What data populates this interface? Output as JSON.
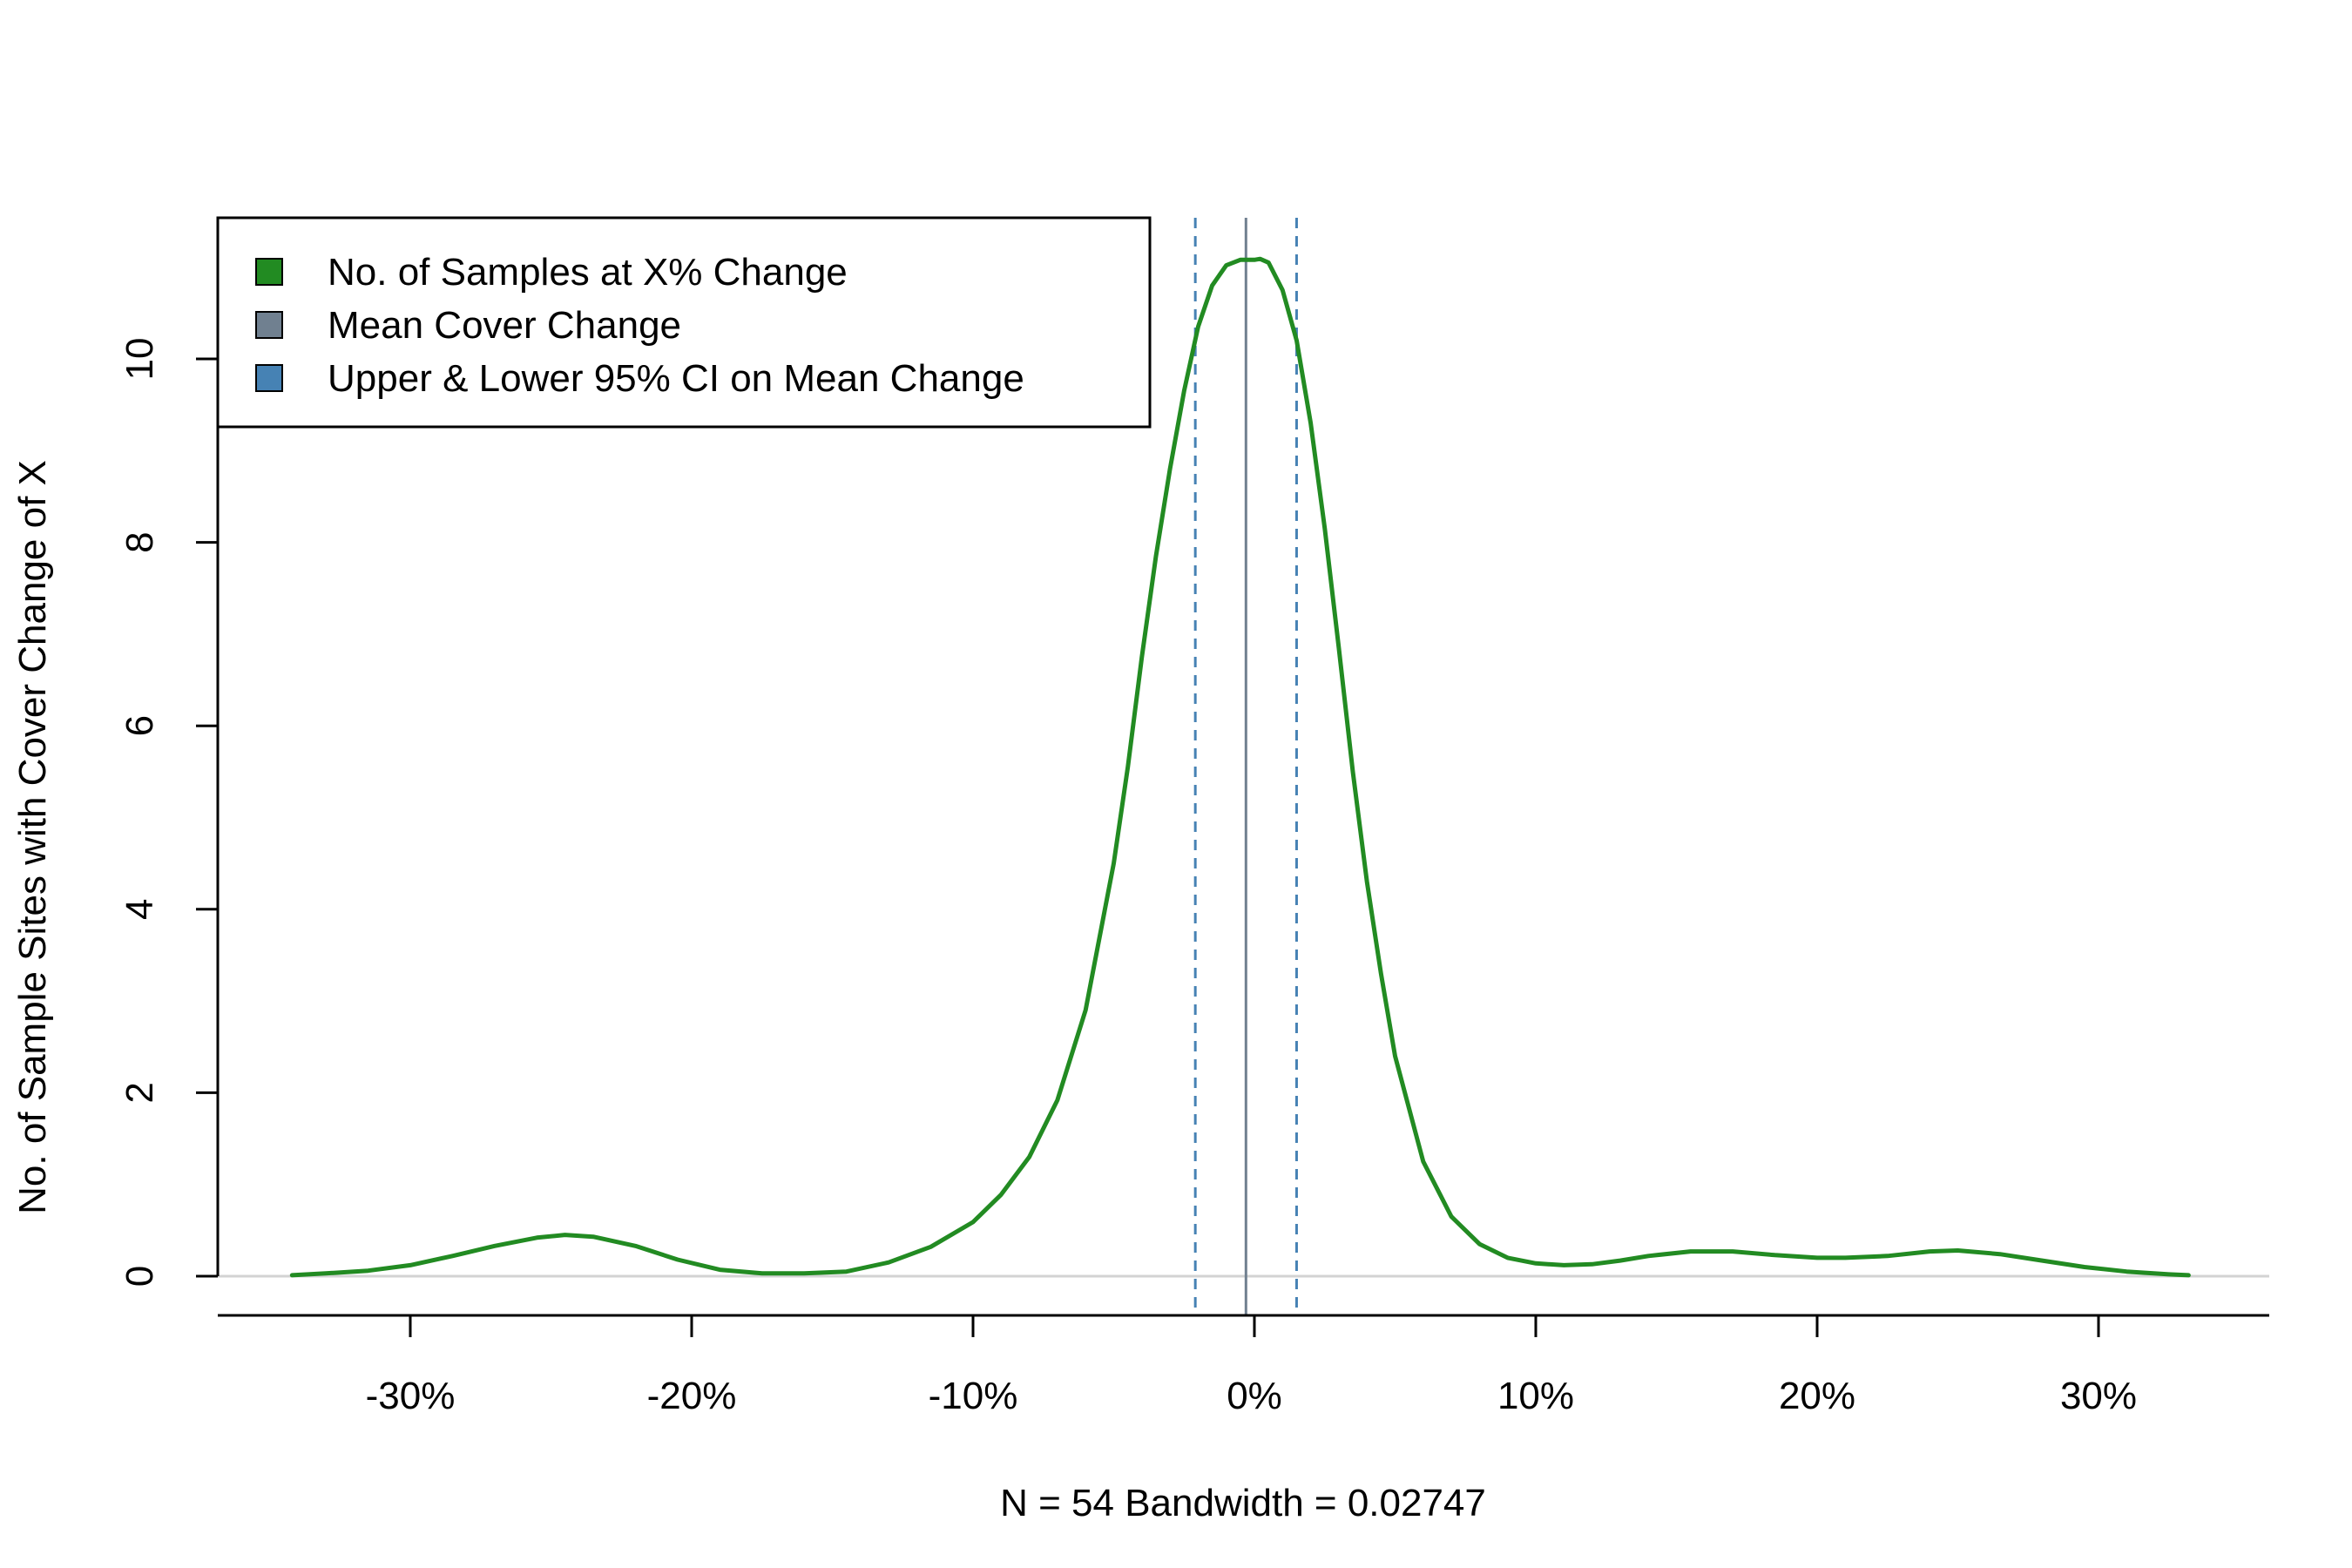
{
  "chart_data": {
    "type": "line",
    "title": "",
    "xlabel": "N = 54   Bandwidth = 0.02747",
    "ylabel": "No. of Sample Sites with Cover Change of X",
    "xlim": [
      -0.37,
      0.36
    ],
    "ylim": [
      0,
      11.5
    ],
    "x_ticks": [
      {
        "value": -0.3,
        "label": "-30%"
      },
      {
        "value": -0.2,
        "label": "-20%"
      },
      {
        "value": -0.1,
        "label": "-10%"
      },
      {
        "value": 0.0,
        "label": "0%"
      },
      {
        "value": 0.1,
        "label": "10%"
      },
      {
        "value": 0.2,
        "label": "20%"
      },
      {
        "value": 0.3,
        "label": "30%"
      }
    ],
    "y_ticks": [
      {
        "value": 0,
        "label": "0"
      },
      {
        "value": 2,
        "label": "2"
      },
      {
        "value": 4,
        "label": "4"
      },
      {
        "value": 6,
        "label": "6"
      },
      {
        "value": 8,
        "label": "8"
      },
      {
        "value": 10,
        "label": "10"
      }
    ],
    "series": [
      {
        "name": "No. of Samples at X% Change",
        "color": "#228B22",
        "x": [
          -0.342,
          -0.33,
          -0.315,
          -0.3,
          -0.285,
          -0.27,
          -0.255,
          -0.245,
          -0.235,
          -0.22,
          -0.205,
          -0.19,
          -0.175,
          -0.16,
          -0.145,
          -0.13,
          -0.115,
          -0.1,
          -0.09,
          -0.08,
          -0.07,
          -0.06,
          -0.05,
          -0.045,
          -0.04,
          -0.035,
          -0.03,
          -0.025,
          -0.02,
          -0.015,
          -0.01,
          -0.005,
          0.0,
          0.002,
          0.005,
          0.01,
          0.015,
          0.02,
          0.025,
          0.03,
          0.035,
          0.04,
          0.045,
          0.05,
          0.06,
          0.07,
          0.08,
          0.09,
          0.1,
          0.11,
          0.12,
          0.13,
          0.14,
          0.155,
          0.17,
          0.185,
          0.2,
          0.21,
          0.225,
          0.24,
          0.25,
          0.265,
          0.28,
          0.295,
          0.31,
          0.325,
          0.332
        ],
        "values": [
          0.01,
          0.03,
          0.06,
          0.12,
          0.22,
          0.33,
          0.42,
          0.45,
          0.43,
          0.33,
          0.18,
          0.07,
          0.03,
          0.03,
          0.05,
          0.15,
          0.32,
          0.59,
          0.89,
          1.3,
          1.92,
          2.9,
          4.5,
          5.55,
          6.75,
          7.85,
          8.8,
          9.65,
          10.35,
          10.8,
          11.02,
          11.08,
          11.08,
          11.09,
          11.05,
          10.75,
          10.2,
          9.3,
          8.15,
          6.85,
          5.5,
          4.3,
          3.3,
          2.4,
          1.25,
          0.65,
          0.35,
          0.2,
          0.14,
          0.12,
          0.13,
          0.17,
          0.22,
          0.27,
          0.27,
          0.23,
          0.2,
          0.2,
          0.22,
          0.27,
          0.28,
          0.24,
          0.17,
          0.1,
          0.05,
          0.02,
          0.01
        ]
      }
    ],
    "vlines": [
      {
        "name": "Mean Cover Change",
        "x": -0.003,
        "color": "#708090",
        "style": "solid"
      },
      {
        "name": "Upper & Lower 95% CI on Mean Change",
        "x": -0.021,
        "color": "#4682B4",
        "style": "dashed"
      },
      {
        "name": "Upper & Lower 95% CI on Mean Change",
        "x": 0.015,
        "color": "#4682B4",
        "style": "dashed"
      }
    ],
    "hline": {
      "y": 0,
      "color": "#d3d3d3"
    },
    "legend": {
      "placement": "top-left",
      "entries": [
        {
          "label": "No. of Samples at X% Change",
          "color": "#228B22"
        },
        {
          "label": "Mean Cover Change",
          "color": "#708090"
        },
        {
          "label": "Upper & Lower 95% CI on Mean Change",
          "color": "#4682B4"
        }
      ]
    }
  }
}
